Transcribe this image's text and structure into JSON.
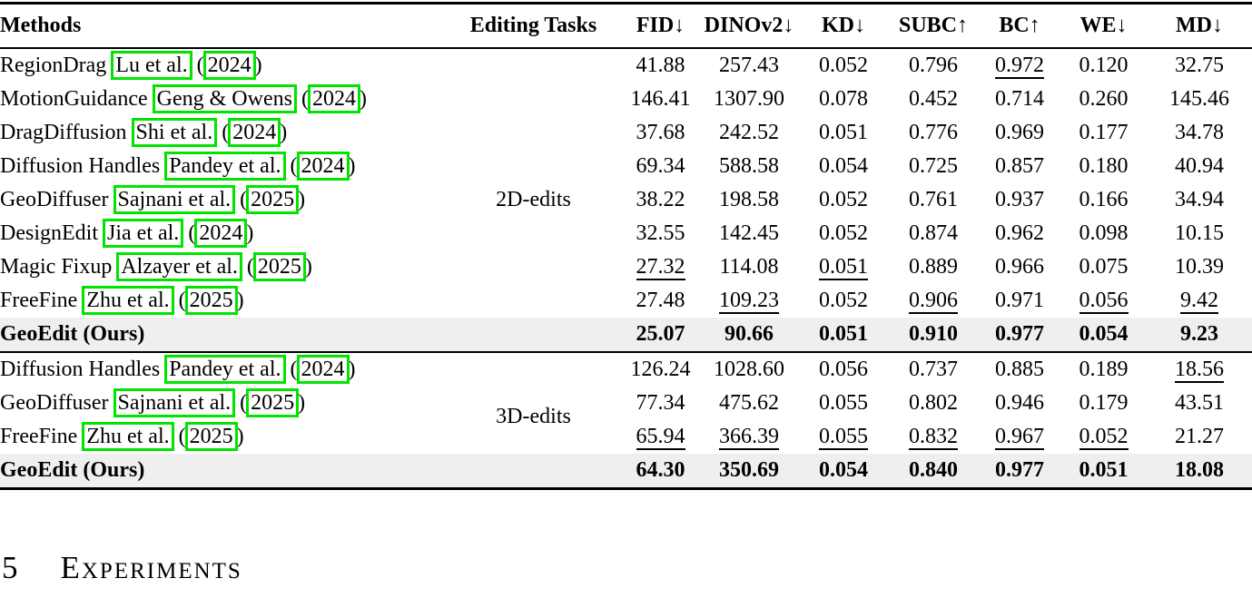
{
  "colors": {
    "link_box": "#00e400",
    "highlight_row": "#efefef",
    "text": "#000000"
  },
  "table": {
    "columns": [
      "Methods",
      "Editing Tasks",
      "FID↓",
      "DINOv2↓",
      "KD↓",
      "SUBC↑",
      "BC↑",
      "WE↓",
      "MD↓"
    ],
    "sections": [
      {
        "task_label": "2D-edits",
        "task_row_index": 4,
        "task_offset": false,
        "rows": [
          {
            "name": "RegionDrag",
            "cite": "Lu et al.",
            "year": "2024",
            "values": [
              "41.88",
              "257.43",
              "0.052",
              "0.796",
              "0.972",
              "0.120",
              "32.75"
            ],
            "underline": [
              4
            ],
            "bold": false,
            "highlight": false
          },
          {
            "name": "MotionGuidance",
            "cite": "Geng & Owens",
            "year": "2024",
            "values": [
              "146.41",
              "1307.90",
              "0.078",
              "0.452",
              "0.714",
              "0.260",
              "145.46"
            ],
            "underline": [],
            "bold": false,
            "highlight": false
          },
          {
            "name": "DragDiffusion",
            "cite": "Shi et al.",
            "year": "2024",
            "values": [
              "37.68",
              "242.52",
              "0.051",
              "0.776",
              "0.969",
              "0.177",
              "34.78"
            ],
            "underline": [],
            "bold": false,
            "highlight": false
          },
          {
            "name": "Diffusion Handles",
            "cite": "Pandey et al.",
            "year": "2024",
            "values": [
              "69.34",
              "588.58",
              "0.054",
              "0.725",
              "0.857",
              "0.180",
              "40.94"
            ],
            "underline": [],
            "bold": false,
            "highlight": false
          },
          {
            "name": "GeoDiffuser",
            "cite": "Sajnani et al.",
            "year": "2025",
            "values": [
              "38.22",
              "198.58",
              "0.052",
              "0.761",
              "0.937",
              "0.166",
              "34.94"
            ],
            "underline": [],
            "bold": false,
            "highlight": false
          },
          {
            "name": "DesignEdit",
            "cite": "Jia et al.",
            "year": "2024",
            "values": [
              "32.55",
              "142.45",
              "0.052",
              "0.874",
              "0.962",
              "0.098",
              "10.15"
            ],
            "underline": [],
            "bold": false,
            "highlight": false
          },
          {
            "name": "Magic Fixup",
            "cite": "Alzayer et al.",
            "year": "2025",
            "values": [
              "27.32",
              "114.08",
              "0.051",
              "0.889",
              "0.966",
              "0.075",
              "10.39"
            ],
            "underline": [
              0,
              2
            ],
            "bold": false,
            "highlight": false
          },
          {
            "name": "FreeFine",
            "cite": "Zhu et al.",
            "year": "2025",
            "values": [
              "27.48",
              "109.23",
              "0.052",
              "0.906",
              "0.971",
              "0.056",
              "9.42"
            ],
            "underline": [
              1,
              3,
              5,
              6
            ],
            "bold": false,
            "highlight": false
          },
          {
            "name": "GeoEdit (Ours)",
            "cite": null,
            "year": null,
            "values": [
              "25.07",
              "90.66",
              "0.051",
              "0.910",
              "0.977",
              "0.054",
              "9.23"
            ],
            "underline": [],
            "bold": true,
            "highlight": true
          }
        ]
      },
      {
        "task_label": "3D-edits",
        "task_row_index": 1,
        "task_offset": true,
        "rows": [
          {
            "name": "Diffusion Handles",
            "cite": "Pandey et al.",
            "year": "2024",
            "values": [
              "126.24",
              "1028.60",
              "0.056",
              "0.737",
              "0.885",
              "0.189",
              "18.56"
            ],
            "underline": [
              6
            ],
            "bold": false,
            "highlight": false
          },
          {
            "name": "GeoDiffuser",
            "cite": "Sajnani et al.",
            "year": "2025",
            "values": [
              "77.34",
              "475.62",
              "0.055",
              "0.802",
              "0.946",
              "0.179",
              "43.51"
            ],
            "underline": [],
            "bold": false,
            "highlight": false
          },
          {
            "name": "FreeFine",
            "cite": "Zhu et al.",
            "year": "2025",
            "values": [
              "65.94",
              "366.39",
              "0.055",
              "0.832",
              "0.967",
              "0.052",
              "21.27"
            ],
            "underline": [
              0,
              1,
              2,
              3,
              4,
              5
            ],
            "bold": false,
            "highlight": false
          },
          {
            "name": "GeoEdit (Ours)",
            "cite": null,
            "year": null,
            "values": [
              "64.30",
              "350.69",
              "0.054",
              "0.840",
              "0.977",
              "0.051",
              "18.08"
            ],
            "underline": [],
            "bold": true,
            "highlight": true
          }
        ]
      }
    ]
  },
  "section_heading": {
    "number": "5",
    "title": "Experiments"
  }
}
